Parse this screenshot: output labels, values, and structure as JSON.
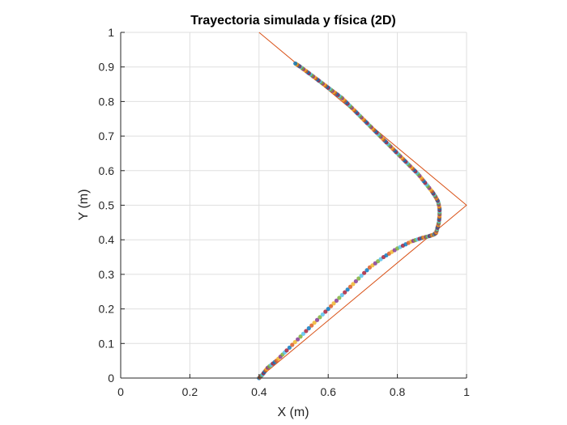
{
  "chart_data": {
    "type": "scatter",
    "title": "Trayectoria simulada y física (2D)",
    "xlabel": "X (m)",
    "ylabel": "Y (m)",
    "xlim": [
      0,
      1
    ],
    "ylim": [
      0,
      1
    ],
    "xticks": [
      "0",
      "0.2",
      "0.4",
      "0.6",
      "0.8",
      "1"
    ],
    "yticks": [
      "0",
      "0.1",
      "0.2",
      "0.3",
      "0.4",
      "0.5",
      "0.6",
      "0.7",
      "0.8",
      "0.9",
      "1"
    ],
    "grid": true,
    "colors": {
      "line": "#D95319",
      "points": [
        "#0072BD",
        "#D95319",
        "#EDB120",
        "#7E2F8E",
        "#77AC30",
        "#4DBEEE",
        "#A2142F"
      ]
    },
    "series": [
      {
        "type": "line",
        "x": [
          0.4,
          1.0,
          0.4
        ],
        "y": [
          0.0,
          0.5,
          1.0
        ]
      },
      {
        "type": "scatter",
        "x": [
          0.4,
          0.41,
          0.425,
          0.45,
          0.48,
          0.52,
          0.56,
          0.6,
          0.64,
          0.68,
          0.72,
          0.76,
          0.8,
          0.84,
          0.87,
          0.89,
          0.905,
          0.912,
          0.916,
          0.92,
          0.922,
          0.922,
          0.918,
          0.91,
          0.9,
          0.88,
          0.86,
          0.84,
          0.82,
          0.8,
          0.78,
          0.76,
          0.74,
          0.72,
          0.7,
          0.68,
          0.66,
          0.64,
          0.62,
          0.6,
          0.58,
          0.56,
          0.54,
          0.52,
          0.505
        ],
        "y": [
          0.0,
          0.01,
          0.03,
          0.05,
          0.08,
          0.12,
          0.16,
          0.2,
          0.24,
          0.28,
          0.32,
          0.35,
          0.375,
          0.395,
          0.405,
          0.41,
          0.415,
          0.42,
          0.435,
          0.45,
          0.47,
          0.49,
          0.51,
          0.525,
          0.54,
          0.565,
          0.59,
          0.61,
          0.63,
          0.65,
          0.67,
          0.69,
          0.71,
          0.73,
          0.75,
          0.77,
          0.79,
          0.81,
          0.825,
          0.84,
          0.855,
          0.87,
          0.885,
          0.9,
          0.91
        ]
      }
    ]
  }
}
